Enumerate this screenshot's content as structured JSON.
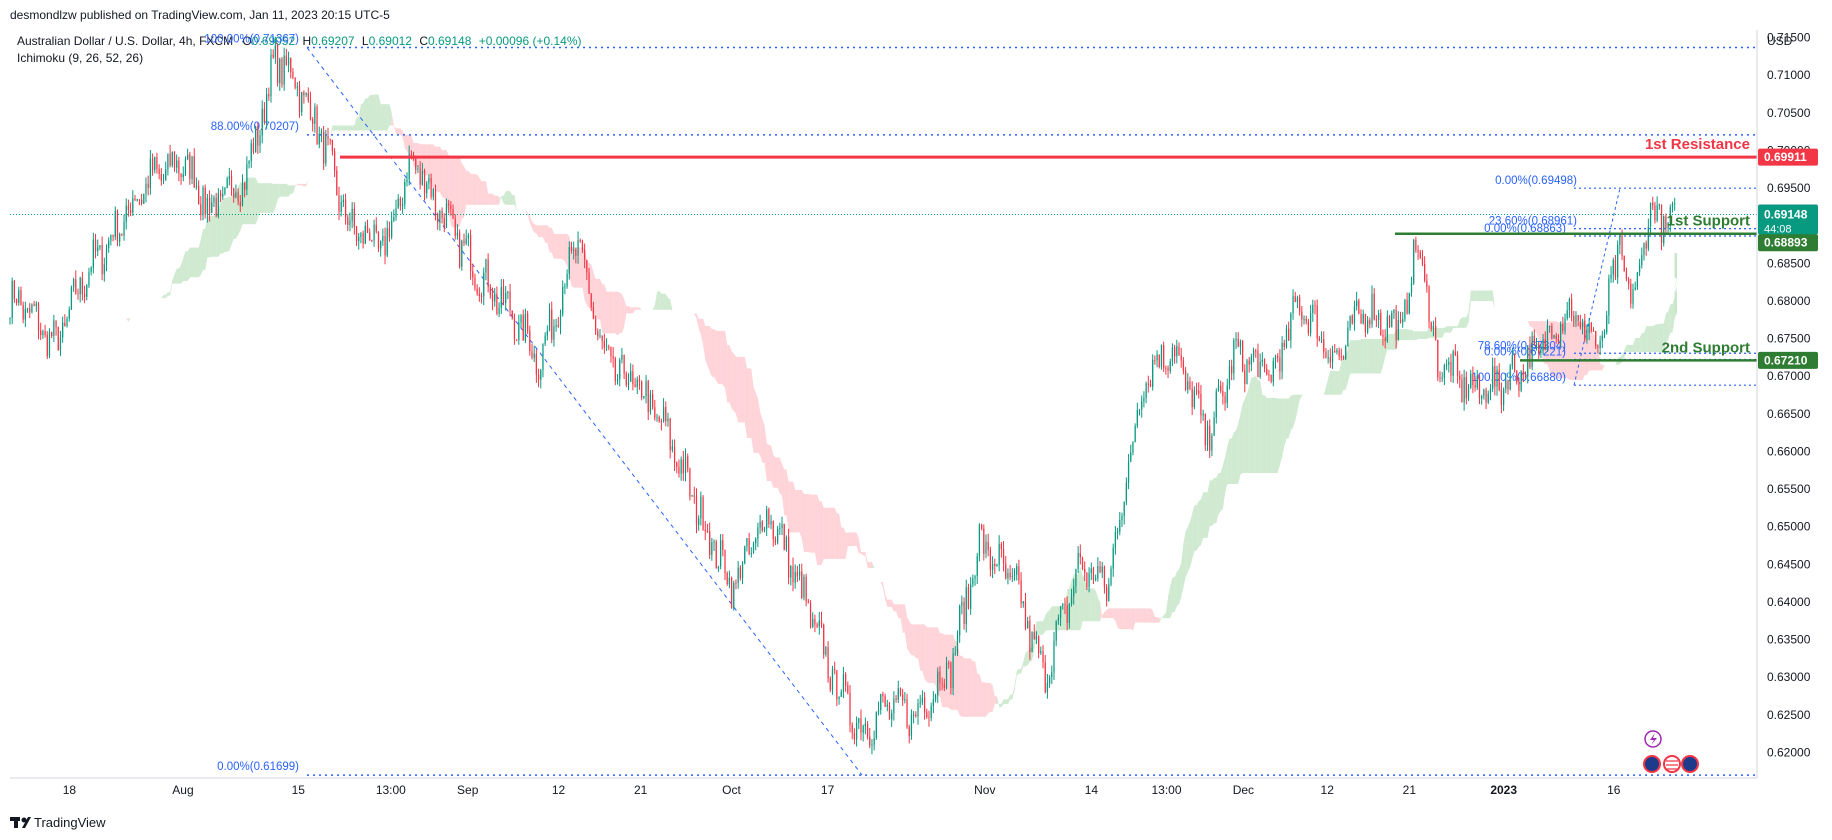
{
  "header": {
    "published": "desmondlzw published on TradingView.com, Jan 11, 2023 20:15 UTC-5",
    "symbol": "Australian Dollar / U.S. Dollar, 4h, FXCM",
    "open_label": "O",
    "open": "0.69052",
    "high_label": "H",
    "high": "0.69207",
    "low_label": "L",
    "low": "0.69012",
    "close_label": "C",
    "close": "0.69148",
    "change": "+0.00096 (+0.14%)",
    "indicator": "Ichimoku (9, 26, 52, 26)"
  },
  "footer": {
    "brand": "TradingView"
  },
  "colors": {
    "up": "#089981",
    "down": "#f23645",
    "fib": "#2962ff",
    "resistance": "#f23645",
    "support": "#2e7d32",
    "cloud_bull": "#c8e6c9",
    "cloud_bear": "#ffcdd2"
  },
  "chart_data": {
    "type": "candlestick",
    "currency": "USD",
    "y_range": [
      0.617,
      0.716
    ],
    "y_ticks": [
      "0.71500",
      "0.71000",
      "0.70500",
      "0.70000",
      "0.69500",
      "0.69000",
      "0.68500",
      "0.68000",
      "0.67500",
      "0.67000",
      "0.66500",
      "0.66000",
      "0.65500",
      "0.65000",
      "0.64500",
      "0.64000",
      "0.63500",
      "0.63000",
      "0.62500",
      "0.62000"
    ],
    "x_ticks": [
      "18",
      "Aug",
      "15",
      "13:00",
      "Sep",
      "12",
      "21",
      "Oct",
      "17",
      "Nov",
      "14",
      "13:00",
      "Dec",
      "12",
      "21",
      "2023",
      "16"
    ],
    "close_path": [
      {
        "d": "Jul 14",
        "p": 0.68
      },
      {
        "d": "Jul 18",
        "p": 0.674
      },
      {
        "d": "Jul 21",
        "p": 0.683
      },
      {
        "d": "Jul 25",
        "p": 0.69
      },
      {
        "d": "Jul 28",
        "p": 0.696
      },
      {
        "d": "Aug 1",
        "p": 0.6985
      },
      {
        "d": "Aug 4",
        "p": 0.692
      },
      {
        "d": "Aug 8",
        "p": 0.697
      },
      {
        "d": "Aug 11",
        "p": 0.712
      },
      {
        "d": "Aug 13",
        "p": 0.71
      },
      {
        "d": "Aug 16",
        "p": 0.702
      },
      {
        "d": "Aug 19",
        "p": 0.69
      },
      {
        "d": "Aug 23",
        "p": 0.687
      },
      {
        "d": "Aug 26",
        "p": 0.699
      },
      {
        "d": "Aug 30",
        "p": 0.69
      },
      {
        "d": "Sep 2",
        "p": 0.684
      },
      {
        "d": "Sep 6",
        "p": 0.678
      },
      {
        "d": "Sep 9",
        "p": 0.672
      },
      {
        "d": "Sep 13",
        "p": 0.688
      },
      {
        "d": "Sep 16",
        "p": 0.672
      },
      {
        "d": "Sep 20",
        "p": 0.668
      },
      {
        "d": "Sep 23",
        "p": 0.662
      },
      {
        "d": "Sep 27",
        "p": 0.65
      },
      {
        "d": "Sep 30",
        "p": 0.642
      },
      {
        "d": "Oct 4",
        "p": 0.652
      },
      {
        "d": "Oct 7",
        "p": 0.643
      },
      {
        "d": "Oct 11",
        "p": 0.63
      },
      {
        "d": "Oct 14",
        "p": 0.623
      },
      {
        "d": "Oct 17",
        "p": 0.626
      },
      {
        "d": "Oct 20",
        "p": 0.625
      },
      {
        "d": "Oct 24",
        "p": 0.632
      },
      {
        "d": "Oct 27",
        "p": 0.648
      },
      {
        "d": "Oct 31",
        "p": 0.642
      },
      {
        "d": "Nov 3",
        "p": 0.63
      },
      {
        "d": "Nov 7",
        "p": 0.645
      },
      {
        "d": "Nov 10",
        "p": 0.642
      },
      {
        "d": "Nov 14",
        "p": 0.67
      },
      {
        "d": "Nov 17",
        "p": 0.674
      },
      {
        "d": "Nov 21",
        "p": 0.662
      },
      {
        "d": "Nov 24",
        "p": 0.673
      },
      {
        "d": "Nov 28",
        "p": 0.67
      },
      {
        "d": "Dec 1",
        "p": 0.68
      },
      {
        "d": "Dec 5",
        "p": 0.672
      },
      {
        "d": "Dec 8",
        "p": 0.679
      },
      {
        "d": "Dec 12",
        "p": 0.676
      },
      {
        "d": "Dec 14",
        "p": 0.688
      },
      {
        "d": "Dec 16",
        "p": 0.672
      },
      {
        "d": "Dec 20",
        "p": 0.668
      },
      {
        "d": "Dec 23",
        "p": 0.669
      },
      {
        "d": "Dec 27",
        "p": 0.673
      },
      {
        "d": "Dec 30",
        "p": 0.679
      },
      {
        "d": "Jan 3",
        "p": 0.674
      },
      {
        "d": "Jan 5",
        "p": 0.688
      },
      {
        "d": "Jan 6",
        "p": 0.679
      },
      {
        "d": "Jan 9",
        "p": 0.694
      },
      {
        "d": "Jan 10",
        "p": 0.688
      },
      {
        "d": "Jan 11",
        "p": 0.6915
      }
    ],
    "levels": [
      {
        "name": "1st Resistance",
        "price": 0.69911,
        "tag": "0.69911",
        "color": "#f23645"
      },
      {
        "name": "1st Support",
        "price": 0.68893,
        "tag": "0.68893",
        "color": "#2e7d32"
      },
      {
        "name": "2nd Support",
        "price": 0.6721,
        "tag": "0.67210",
        "color": "#2e7d32"
      }
    ],
    "current_price": {
      "tag": "0.69148",
      "countdown": "44:08",
      "price": 0.69148
    },
    "fib_major": [
      {
        "label": "100.00%(0.71367)",
        "price": 0.71367
      },
      {
        "label": "88.00%(0.70207)",
        "price": 0.70207
      },
      {
        "label": "0.00%(0.61699)",
        "price": 0.61699
      }
    ],
    "fib_minor": [
      {
        "label": "0.00%(0.69498)",
        "price": 0.69498
      },
      {
        "label": "23.60%(0.68961)",
        "price": 0.68961
      },
      {
        "label": "0.00%(0.68863)",
        "price": 0.68863
      },
      {
        "label": "78.60%(0.67304)",
        "price": 0.67304
      },
      {
        "label": "0.00%(0.67221)",
        "price": 0.67221
      },
      {
        "label": "100.00%(0.66880)",
        "price": 0.6688
      }
    ]
  }
}
